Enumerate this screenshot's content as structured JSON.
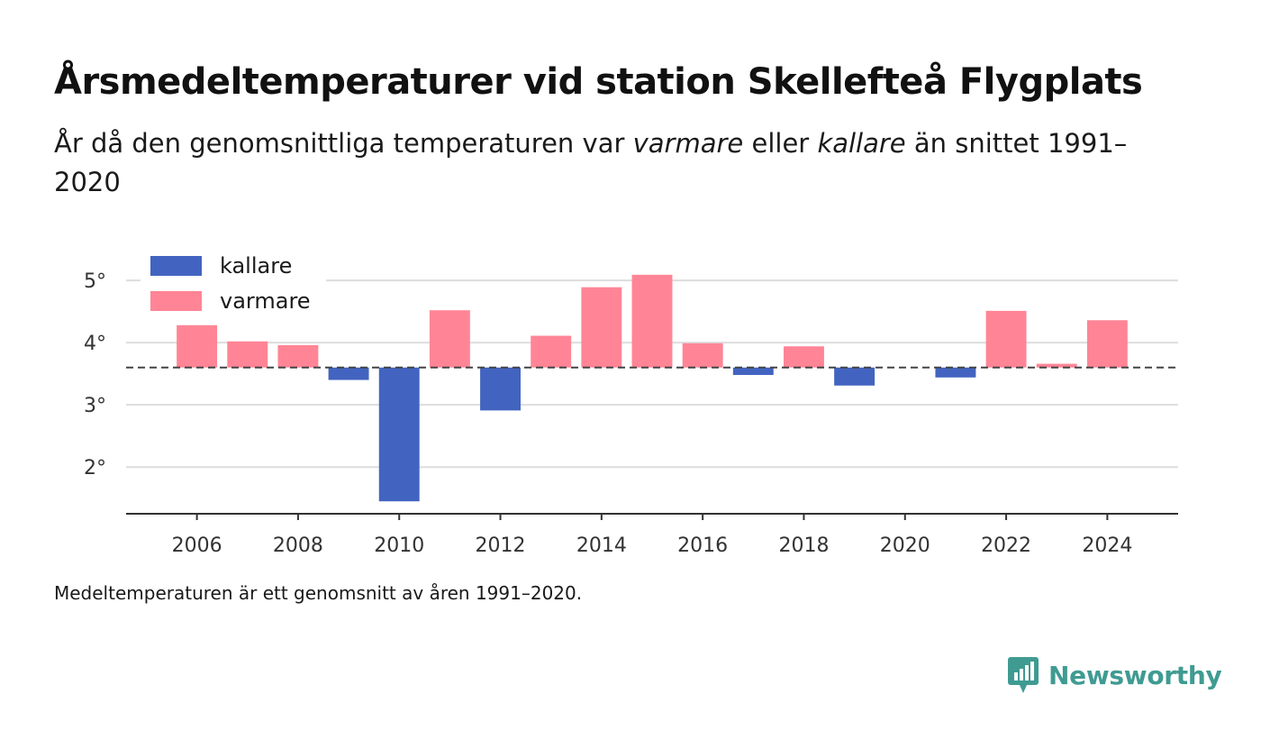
{
  "header": {
    "title": "Årsmedeltemperaturer vid station Skellefteå Flygplats",
    "subtitle_part1": "År då den genomsnittliga temperaturen var ",
    "subtitle_warm": "varmare",
    "subtitle_part2": " eller ",
    "subtitle_cold": "kallare",
    "subtitle_part3": " än snittet 1991–2020"
  },
  "footer": {
    "note": "Medeltemperaturen är ett genomsnitt av åren 1991–2020.",
    "brand": "Newsworthy"
  },
  "colors": {
    "cold": "#4264c0",
    "warm": "#ff8596",
    "brand": "#3f9b92"
  },
  "chart_data": {
    "type": "bar",
    "baseline": 3.6,
    "x": [
      2006,
      2007,
      2008,
      2009,
      2010,
      2011,
      2012,
      2013,
      2014,
      2015,
      2016,
      2017,
      2018,
      2019,
      2021,
      2022,
      2023,
      2024
    ],
    "values": [
      4.28,
      4.02,
      3.96,
      3.4,
      1.45,
      4.52,
      2.91,
      4.11,
      4.89,
      5.09,
      3.99,
      3.48,
      3.94,
      3.31,
      3.44,
      4.51,
      3.66,
      4.36
    ],
    "xlim": [
      2004.6,
      2025.4
    ],
    "ylim": [
      1.25,
      5.45
    ],
    "xticks": [
      2006,
      2008,
      2010,
      2012,
      2014,
      2016,
      2018,
      2020,
      2022,
      2024
    ],
    "yticks": [
      2,
      3,
      4,
      5
    ],
    "ytick_labels": [
      "2°",
      "3°",
      "4°",
      "5°"
    ],
    "legend": [
      {
        "key": "cold",
        "label": "kallare"
      },
      {
        "key": "warm",
        "label": "varmare"
      }
    ],
    "legend_position": "top-left",
    "grid": true
  }
}
